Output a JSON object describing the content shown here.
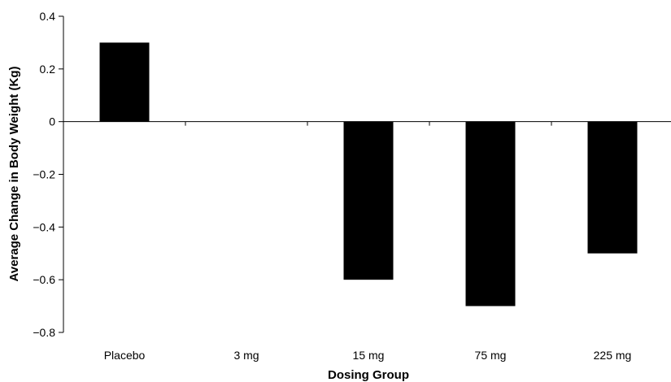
{
  "chart_data": {
    "type": "bar",
    "title": "",
    "xlabel": "Dosing Group",
    "ylabel": "Average Change in Body Weight (Kg)",
    "categories": [
      "Placebo",
      "3 mg",
      "15 mg",
      "75 mg",
      "225 mg"
    ],
    "values": [
      0.3,
      0.0,
      -0.6,
      -0.7,
      -0.5
    ],
    "ylim": [
      -0.8,
      0.4
    ],
    "yticks": [
      0.4,
      0.2,
      0,
      -0.2,
      -0.4,
      -0.6,
      -0.8
    ],
    "ytick_labels": [
      "0.4",
      "0.2",
      "0",
      "−0.2",
      "−0.4",
      "−0.6",
      "−0.8"
    ],
    "bar_color": "#000000",
    "grid": false,
    "legend": "none"
  }
}
